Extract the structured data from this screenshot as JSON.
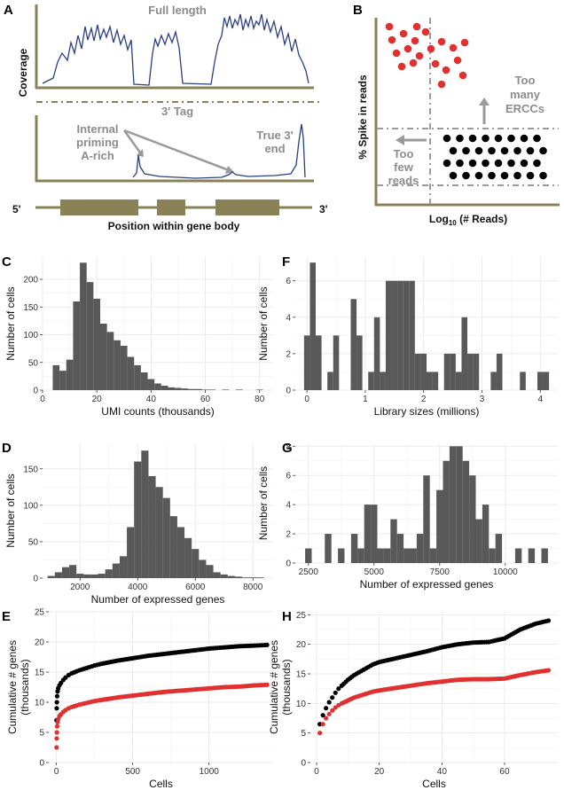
{
  "panels": {
    "A": {
      "label": "A",
      "full_length": "Full length",
      "coverage": "Coverage",
      "tag": "3' Tag",
      "internal_priming": [
        "Internal",
        "priming",
        "A-rich"
      ],
      "true_end": [
        "True 3'",
        "end"
      ],
      "five_prime": "5'",
      "three_prime": "3'",
      "xlabel": "Position within gene body"
    },
    "B": {
      "label": "B",
      "ylabel": "% Spike in reads",
      "xlabel_pre": "Log",
      "xlabel_sub": "10",
      "xlabel_post": " (# Reads)",
      "too_many": [
        "Too",
        "many",
        "ERCCs"
      ],
      "too_few": [
        "Too",
        "few",
        "reads"
      ]
    },
    "E": {
      "label": "E"
    },
    "H": {
      "label": "H"
    }
  },
  "colors": {
    "bars": "#595959",
    "olive": "#8a8257",
    "line_blue": "#2b3f80",
    "red": "#e03030",
    "black": "#000000",
    "grid": "#ebebeb"
  },
  "chart_data": [
    {
      "id": "C",
      "type": "bar",
      "label": "C",
      "xlabel": "UMI counts (thousands)",
      "ylabel": "Number of cells",
      "xlim": [
        0,
        85
      ],
      "ylim": [
        0,
        240
      ],
      "xticks": [
        0,
        20,
        40,
        60,
        80
      ],
      "yticks": [
        0,
        50,
        100,
        150,
        200
      ],
      "bin_width": 2.5,
      "x": [
        5,
        7.5,
        10,
        12.5,
        15,
        17.5,
        20,
        22.5,
        25,
        27.5,
        30,
        32.5,
        35,
        37.5,
        40,
        42.5,
        45,
        47.5,
        50,
        52.5,
        55,
        57.5,
        60,
        62.5,
        65,
        67.5,
        70,
        72.5,
        75,
        77.5,
        80
      ],
      "values": [
        45,
        35,
        55,
        160,
        230,
        195,
        165,
        120,
        105,
        90,
        80,
        60,
        45,
        32,
        20,
        12,
        8,
        5,
        4,
        3,
        2,
        2,
        1,
        1,
        0,
        1,
        0,
        1,
        0,
        0,
        1
      ]
    },
    {
      "id": "F",
      "type": "bar",
      "label": "F",
      "xlabel": "Library sizes (millions)",
      "ylabel": "Number of cells",
      "xlim": [
        -0.2,
        4.3
      ],
      "ylim": [
        0,
        7.3
      ],
      "xticks": [
        0,
        1,
        2,
        3,
        4
      ],
      "yticks": [
        0,
        2,
        4,
        6
      ],
      "bin_width": 0.1,
      "x": [
        0.0,
        0.1,
        0.2,
        0.3,
        0.4,
        0.5,
        0.6,
        0.7,
        0.8,
        0.9,
        1.0,
        1.1,
        1.2,
        1.3,
        1.4,
        1.5,
        1.6,
        1.7,
        1.8,
        1.9,
        2.0,
        2.1,
        2.2,
        2.3,
        2.4,
        2.5,
        2.6,
        2.7,
        2.8,
        2.9,
        3.0,
        3.1,
        3.2,
        3.3,
        3.4,
        3.5,
        3.6,
        3.7,
        3.8,
        3.9,
        4.0,
        4.1
      ],
      "values": [
        3,
        7,
        3,
        0,
        1,
        3,
        0,
        0,
        5,
        3,
        0,
        1,
        4,
        1,
        6,
        6,
        6,
        6,
        6,
        2,
        2,
        1,
        1,
        0,
        2,
        2,
        1,
        4,
        2,
        2,
        0,
        0,
        1,
        2,
        0,
        0,
        0,
        1,
        0,
        0,
        1,
        1
      ]
    },
    {
      "id": "D",
      "type": "bar",
      "label": "D",
      "xlabel": "Number of expressed genes",
      "ylabel": "Number of cells",
      "xlim": [
        700,
        8700
      ],
      "ylim": [
        0,
        185
      ],
      "xticks": [
        2000,
        4000,
        6000,
        8000
      ],
      "yticks": [
        0,
        50,
        100,
        150
      ],
      "bin_width": 250,
      "x": [
        1000,
        1250,
        1500,
        1750,
        2000,
        2250,
        2500,
        2750,
        3000,
        3250,
        3500,
        3750,
        4000,
        4250,
        4500,
        4750,
        5000,
        5250,
        5500,
        5750,
        6000,
        6250,
        6500,
        6750,
        7000,
        7250,
        7500,
        7750,
        8000,
        8250
      ],
      "values": [
        3,
        8,
        15,
        18,
        6,
        5,
        5,
        6,
        12,
        20,
        30,
        70,
        160,
        175,
        140,
        125,
        110,
        85,
        70,
        55,
        40,
        25,
        18,
        8,
        5,
        3,
        2,
        1,
        1,
        1
      ]
    },
    {
      "id": "G",
      "type": "bar",
      "label": "G",
      "xlabel": "Number of expressed genes",
      "ylabel": "Number of cells",
      "xlim": [
        2000,
        12000
      ],
      "ylim": [
        0,
        8.2
      ],
      "xticks": [
        2500,
        5000,
        7500,
        10000
      ],
      "yticks": [
        0,
        2,
        4,
        6,
        8
      ],
      "bin_width": 250,
      "x": [
        2500,
        2750,
        3000,
        3250,
        3500,
        3750,
        4000,
        4250,
        4500,
        4750,
        5000,
        5250,
        5500,
        5750,
        6000,
        6250,
        6500,
        6750,
        7000,
        7250,
        7500,
        7750,
        8000,
        8250,
        8500,
        8750,
        9000,
        9250,
        9500,
        9750,
        10000,
        10250,
        10500,
        10750,
        11000,
        11250,
        11500
      ],
      "values": [
        1,
        0,
        0,
        2,
        0,
        1,
        0,
        2,
        1,
        4,
        4,
        1,
        1,
        3,
        2,
        1,
        1,
        2,
        6,
        1,
        5,
        7,
        8,
        8,
        7,
        6,
        3,
        4,
        1,
        2,
        0,
        0,
        1,
        0,
        1,
        0,
        1
      ]
    },
    {
      "id": "E",
      "type": "scatter",
      "label": "E",
      "xlabel": "Cells",
      "ylabel": "Cumulative # genes (thousands)",
      "xlim": [
        -50,
        1420
      ],
      "ylim": [
        0,
        25
      ],
      "xticks": [
        0,
        500,
        1000
      ],
      "yticks": [
        0,
        5,
        10,
        15,
        20,
        25
      ],
      "series": [
        {
          "color": "#000000",
          "x": [
            1,
            2,
            3,
            5,
            8,
            12,
            20,
            30,
            45,
            60,
            80,
            100,
            150,
            200,
            250,
            300,
            400,
            500,
            600,
            700,
            800,
            900,
            1000,
            1100,
            1200,
            1300,
            1380
          ],
          "y": [
            7,
            9,
            10,
            11,
            11.8,
            12.3,
            12.8,
            13.2,
            13.7,
            14.1,
            14.5,
            14.8,
            15.3,
            15.7,
            16.1,
            16.4,
            16.9,
            17.3,
            17.7,
            18.0,
            18.3,
            18.6,
            18.9,
            19.1,
            19.3,
            19.4,
            19.5
          ]
        },
        {
          "color": "#e03030",
          "x": [
            1,
            2,
            3,
            5,
            8,
            12,
            20,
            30,
            45,
            60,
            80,
            100,
            150,
            200,
            250,
            300,
            400,
            500,
            600,
            700,
            800,
            900,
            1000,
            1100,
            1200,
            1300,
            1380
          ],
          "y": [
            2.5,
            4,
            5,
            6,
            6.7,
            7.2,
            7.7,
            8.0,
            8.4,
            8.7,
            9.0,
            9.2,
            9.6,
            9.9,
            10.2,
            10.4,
            10.8,
            11.1,
            11.4,
            11.7,
            11.9,
            12.1,
            12.3,
            12.5,
            12.6,
            12.8,
            12.9
          ]
        }
      ]
    },
    {
      "id": "H",
      "type": "scatter",
      "label": "H",
      "xlabel": "Cells",
      "ylabel": "Cumulative # genes (thousands)",
      "xlim": [
        -2,
        77
      ],
      "ylim": [
        0,
        25.5
      ],
      "xticks": [
        0,
        20,
        40,
        60
      ],
      "yticks": [
        0,
        5,
        10,
        15,
        20,
        25
      ],
      "series": [
        {
          "color": "#000000",
          "x": [
            1,
            2,
            3,
            4,
            5,
            6,
            7,
            8,
            10,
            12,
            15,
            18,
            20,
            25,
            30,
            35,
            40,
            45,
            50,
            55,
            60,
            65,
            70,
            74
          ],
          "y": [
            6.5,
            8.0,
            9.2,
            10.2,
            11.0,
            11.8,
            12.5,
            13.0,
            14.0,
            14.8,
            15.7,
            16.6,
            17.0,
            17.6,
            18.2,
            18.8,
            19.5,
            20.0,
            20.3,
            20.4,
            21.0,
            22.5,
            23.5,
            24.0
          ]
        },
        {
          "color": "#e03030",
          "x": [
            1,
            2,
            3,
            4,
            5,
            6,
            7,
            8,
            10,
            12,
            15,
            18,
            20,
            25,
            30,
            35,
            40,
            45,
            50,
            55,
            60,
            65,
            70,
            74
          ],
          "y": [
            5.0,
            6.5,
            7.5,
            8.2,
            8.8,
            9.3,
            9.7,
            10.0,
            10.5,
            11.0,
            11.5,
            12.0,
            12.2,
            12.6,
            13.0,
            13.4,
            13.7,
            14.0,
            14.1,
            14.1,
            14.2,
            14.8,
            15.3,
            15.6
          ]
        }
      ]
    }
  ]
}
